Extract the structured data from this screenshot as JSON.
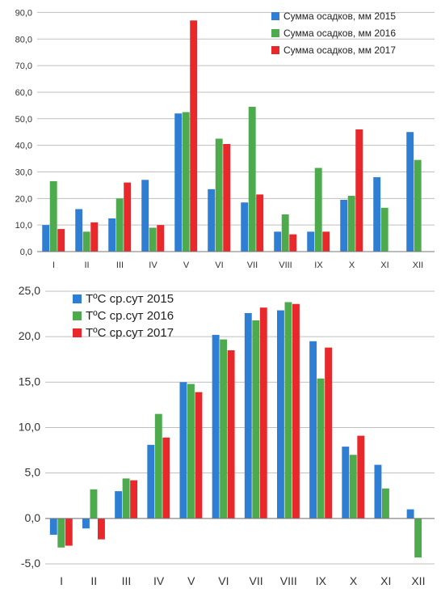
{
  "colors": {
    "2015": "#2e7fd3",
    "2016": "#4dab4d",
    "2017": "#e8282b",
    "grid": "#bfbfbf",
    "axis": "#777777"
  },
  "chart_data": [
    {
      "type": "bar",
      "categories": [
        "I",
        "II",
        "III",
        "IV",
        "V",
        "VI",
        "VII",
        "VIII",
        "IX",
        "X",
        "XI",
        "XII"
      ],
      "series": [
        {
          "name": "Сумма осадков, мм 2015",
          "values": [
            10,
            16,
            12.5,
            27,
            52,
            23.5,
            18.5,
            7.5,
            7.5,
            19.5,
            28,
            45
          ]
        },
        {
          "name": "Сумма осадков, мм 2016",
          "values": [
            26.5,
            7.5,
            20,
            9,
            52.5,
            42.5,
            54.5,
            14,
            31.5,
            21,
            16.5,
            34.5
          ]
        },
        {
          "name": "Сумма осадков, мм 2017",
          "values": [
            8.5,
            11,
            26,
            10,
            87,
            40.5,
            21.5,
            6.5,
            7.5,
            46,
            null,
            null
          ]
        }
      ],
      "ylim": [
        0,
        95
      ],
      "yticks": [
        "0,0",
        "10,0",
        "20,0",
        "30,0",
        "40,0",
        "50,0",
        "60,0",
        "70,0",
        "80,0",
        "90,0"
      ],
      "ytick_values": [
        0,
        10,
        20,
        30,
        40,
        50,
        60,
        70,
        80,
        90
      ],
      "legend": "top-right",
      "grid": true
    },
    {
      "type": "bar",
      "categories": [
        "I",
        "II",
        "III",
        "IV",
        "V",
        "VI",
        "VII",
        "VIII",
        "IX",
        "X",
        "XI",
        "XII"
      ],
      "series": [
        {
          "name": "TºC ср.сут 2015",
          "values": [
            -1.8,
            -1.1,
            3.0,
            8.1,
            15.0,
            20.2,
            22.6,
            22.9,
            19.5,
            7.9,
            5.9,
            1.0
          ]
        },
        {
          "name": "TºC ср.сут 2016",
          "values": [
            -3.2,
            3.2,
            4.4,
            11.5,
            14.8,
            19.7,
            21.8,
            23.8,
            15.4,
            7.0,
            3.3,
            -4.3
          ]
        },
        {
          "name": "TºC ср.сут 2017",
          "values": [
            -3.0,
            -2.3,
            4.2,
            8.9,
            13.9,
            18.5,
            23.2,
            23.6,
            18.8,
            9.1,
            null,
            null
          ]
        }
      ],
      "ylim": [
        -5,
        25
      ],
      "yticks": [
        "-5,0",
        "0,0",
        "5,0",
        "10,0",
        "15,0",
        "20,0",
        "25,0"
      ],
      "ytick_values": [
        -5,
        0,
        5,
        10,
        15,
        20,
        25
      ],
      "legend": "top-left",
      "grid": true
    }
  ]
}
